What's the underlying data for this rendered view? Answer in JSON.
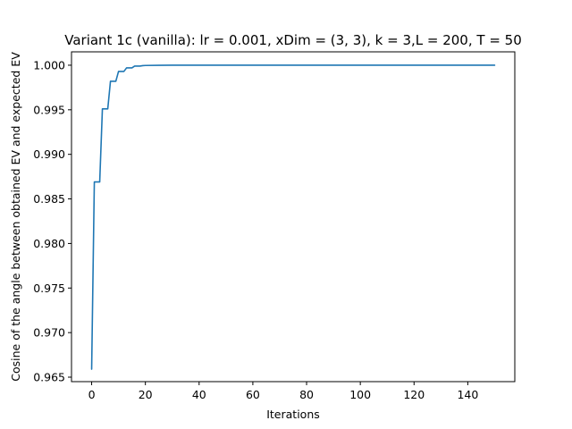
{
  "chart_data": {
    "type": "line",
    "title": "Variant 1c (vanilla): lr = 0.001, xDim = (3, 3), k = 3,L = 200, T = 50",
    "xlabel": "Iterations",
    "ylabel": "Cosine of the angle between obtained EV and expected EV",
    "xlim": [
      -7.5,
      157.5
    ],
    "ylim": [
      0.9645,
      1.0015
    ],
    "xticks": [
      0,
      20,
      40,
      60,
      80,
      100,
      120,
      140
    ],
    "yticks": [
      0.965,
      0.97,
      0.975,
      0.98,
      0.985,
      0.99,
      0.995,
      1.0
    ],
    "ytick_labels": [
      "0.965",
      "0.970",
      "0.975",
      "0.980",
      "0.985",
      "0.990",
      "0.995",
      "1.000"
    ],
    "grid": false,
    "series": [
      {
        "color": "#1f77b4",
        "x": [
          0,
          1,
          2,
          3,
          4,
          5,
          6,
          7,
          8,
          9,
          10,
          11,
          12,
          13,
          14,
          15,
          16,
          17,
          18,
          19,
          20,
          25,
          30,
          40,
          60,
          80,
          100,
          120,
          140,
          150
        ],
        "y": [
          0.9659,
          0.9869,
          0.9869,
          0.9869,
          0.9951,
          0.9951,
          0.9951,
          0.9982,
          0.9982,
          0.9982,
          0.9993,
          0.9993,
          0.9993,
          0.9997,
          0.9997,
          0.9997,
          0.9999,
          0.9999,
          0.9999,
          0.99995,
          0.99997,
          0.99999,
          1.0,
          1.0,
          1.0,
          1.0,
          1.0,
          1.0,
          1.0,
          1.0
        ]
      }
    ]
  }
}
